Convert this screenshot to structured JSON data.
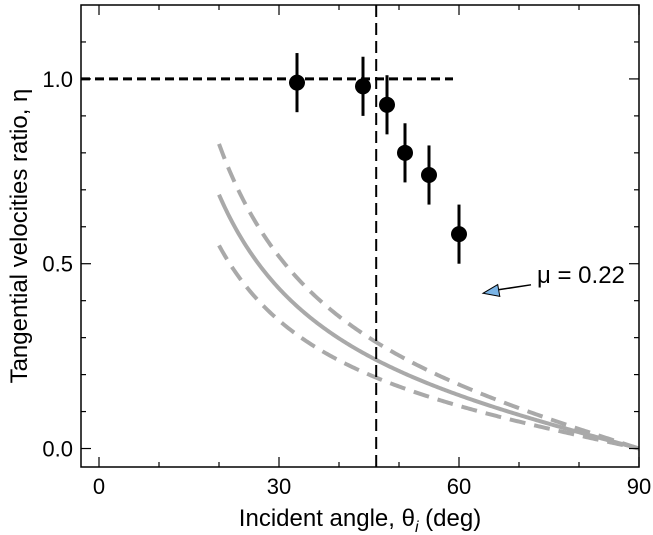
{
  "chart_data": {
    "type": "scatter",
    "xlabel": "Incident angle, θ",
    "xlabel_sub": "i",
    "xlabel_suffix": " (deg)",
    "ylabel": "Tangential velocities ratio, η",
    "xlim": [
      -3,
      90
    ],
    "ylim": [
      -0.05,
      1.2
    ],
    "x_ticks": [
      0,
      30,
      60,
      90
    ],
    "y_ticks": [
      0.0,
      0.5,
      1.0
    ],
    "x_tick_labels": [
      "0",
      "30",
      "60",
      "90"
    ],
    "y_tick_labels": [
      "0.0",
      "0.5",
      "1.0"
    ],
    "points": [
      {
        "x": 33,
        "y": 0.99,
        "err": 0.08
      },
      {
        "x": 44,
        "y": 0.98,
        "err": 0.08
      },
      {
        "x": 48,
        "y": 0.93,
        "err": 0.08
      },
      {
        "x": 51,
        "y": 0.8,
        "err": 0.08
      },
      {
        "x": 55,
        "y": 0.74,
        "err": 0.08
      },
      {
        "x": 60,
        "y": 0.58,
        "err": 0.08
      }
    ],
    "reference_line": {
      "y": 1.0,
      "x_end": 59,
      "style": "dashed",
      "color": "#000000"
    },
    "vertical_line": {
      "x": 46.2,
      "style": "dashed",
      "color": "#000000"
    },
    "model": {
      "mu": 0.22,
      "color": "#a9a9a9",
      "k_center": 0.25,
      "k_upper": 0.3,
      "k_lower": 0.2
    },
    "annotation": {
      "text": "μ = 0.22",
      "x": 73,
      "y": 0.47,
      "arrow_to_x": 64,
      "arrow_to_y": 0.42
    },
    "marker_color": "#000000",
    "arrow_fill": "#7ab4e6"
  }
}
